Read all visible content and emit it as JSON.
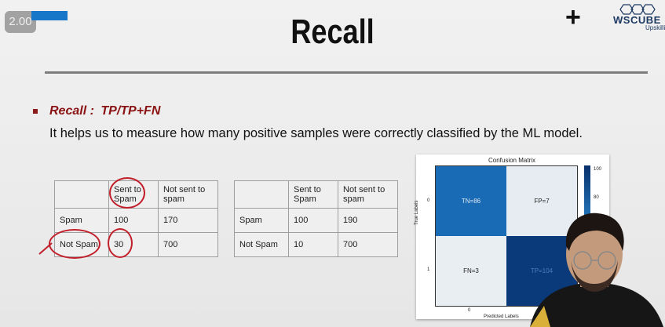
{
  "overlay": {
    "zoom_badge": "2.00"
  },
  "logo": {
    "name": "WSCUBE",
    "sub": "Upskilli"
  },
  "slide": {
    "title": "Recall",
    "recall_label": "Recall :",
    "recall_formula": "TP/TP+FN",
    "description": "It helps us to measure how many positive samples were correctly classified by the ML model."
  },
  "table1": {
    "headers": [
      "",
      "Sent to Spam",
      "Not sent to spam"
    ],
    "rows": [
      [
        "Spam",
        "100",
        "170"
      ],
      [
        "Not Spam",
        "30",
        "700"
      ]
    ]
  },
  "table2": {
    "headers": [
      "",
      "Sent to Spam",
      "Not sent to spam"
    ],
    "rows": [
      [
        "Spam",
        "100",
        "190"
      ],
      [
        "Not Spam",
        "10",
        "700"
      ]
    ]
  },
  "confusion": {
    "title": "Confusion Matrix",
    "cells": [
      "TN=86",
      "FP=7",
      "FN=3",
      "TP=104"
    ],
    "y_label": "True Labels",
    "x_label": "Predicted Labels",
    "y_ticks": [
      "0",
      "1"
    ],
    "x_ticks": [
      "0"
    ],
    "colorbar_ticks": [
      "100",
      "80"
    ]
  },
  "colors": {
    "accent_red": "#8b1212",
    "annotation_red": "#c21e2a",
    "matrix_dark": "#0b3a7a",
    "matrix_mid": "#1a6bb6"
  }
}
